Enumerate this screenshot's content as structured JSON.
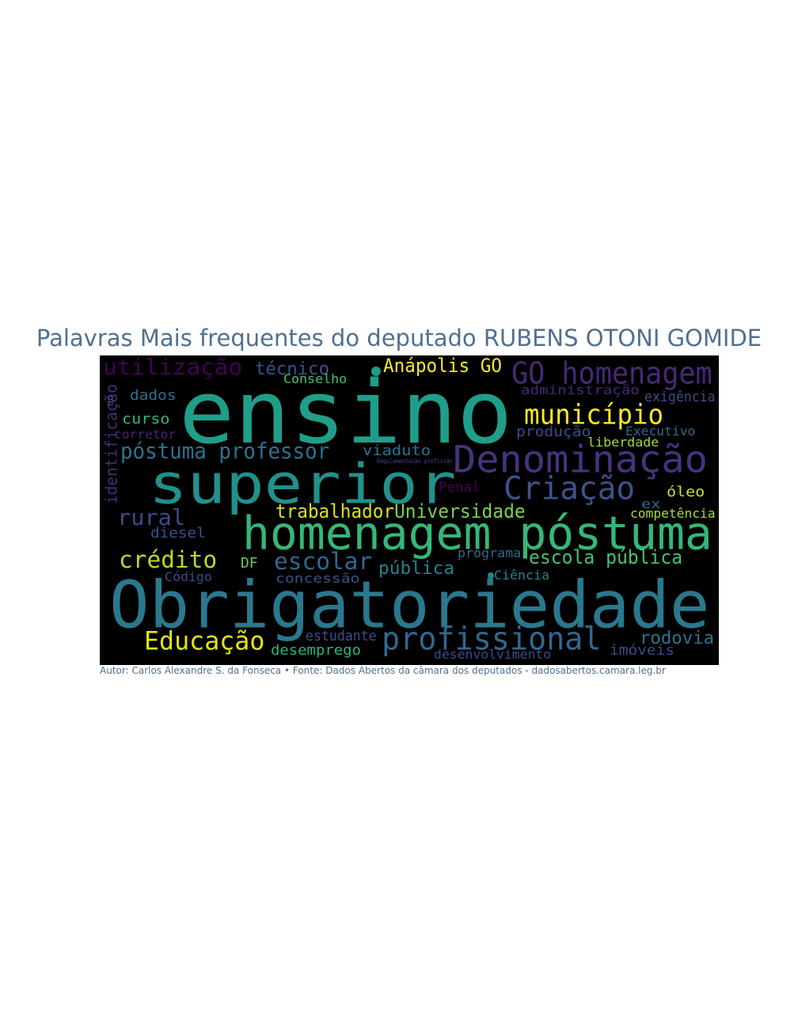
{
  "title": "Palavras Mais frequentes do deputado RUBENS OTONI GOMIDE",
  "caption": "Autor: Carlos Alexandre S. da Fonseca • Fonte: Dados Abertos da câmara dos deputados - dadosabertos.camara.leg.br",
  "colors": {
    "title": "#51708f",
    "background": "#000000"
  },
  "words": [
    {
      "text": "ensino",
      "color": "#1f9e89"
    },
    {
      "text": "superior",
      "color": "#21918c"
    },
    {
      "text": "Obrigatoriedade",
      "color": "#2a788e"
    },
    {
      "text": "homenagem póstuma",
      "color": "#35b779"
    },
    {
      "text": "Denominação",
      "color": "#46327e"
    },
    {
      "text": "GO homenagem",
      "color": "#482878"
    },
    {
      "text": "Criação",
      "color": "#3b528b"
    },
    {
      "text": "profissional",
      "color": "#31688e"
    },
    {
      "text": "município",
      "color": "#fde725"
    },
    {
      "text": "utilização",
      "color": "#440154"
    },
    {
      "text": "póstuma professor",
      "color": "#2c728e"
    },
    {
      "text": "Educação",
      "color": "#e5e419"
    },
    {
      "text": "crédito",
      "color": "#b5de2b"
    },
    {
      "text": "rural",
      "color": "#3e4a89"
    },
    {
      "text": "escolar",
      "color": "#31688e"
    },
    {
      "text": "trabalhador",
      "color": "#d8e219"
    },
    {
      "text": "Universidade",
      "color": "#7ad151"
    },
    {
      "text": "escola pública",
      "color": "#4ac16d"
    },
    {
      "text": "Anápolis GO",
      "color": "#fde725"
    },
    {
      "text": "técnico",
      "color": "#3b528b"
    },
    {
      "text": "pública",
      "color": "#26828e"
    },
    {
      "text": "rodovia",
      "color": "#2c728e"
    },
    {
      "text": "estudante",
      "color": "#3e4a89"
    },
    {
      "text": "desemprego",
      "color": "#2db27d"
    },
    {
      "text": "desenvolvimento",
      "color": "#3e4a89"
    },
    {
      "text": "imóveis",
      "color": "#3e4a89"
    },
    {
      "text": "dados",
      "color": "#2c728e"
    },
    {
      "text": "curso",
      "color": "#35b779"
    },
    {
      "text": "corretor",
      "color": "#482475"
    },
    {
      "text": "identificação",
      "color": "#472d7b"
    },
    {
      "text": "Conselho",
      "color": "#4ac16d"
    },
    {
      "text": "administração",
      "color": "#482878"
    },
    {
      "text": "exigência",
      "color": "#3e4a89"
    },
    {
      "text": "produção",
      "color": "#3e4a89"
    },
    {
      "text": "Executivo",
      "color": "#31688e"
    },
    {
      "text": "liberdade",
      "color": "#a0da39"
    },
    {
      "text": "viaduto",
      "color": "#2c728e"
    },
    {
      "text": "Regulamentação profissão",
      "color": "#414487"
    },
    {
      "text": "Penal",
      "color": "#440154"
    },
    {
      "text": "óleo",
      "color": "#d2e21b"
    },
    {
      "text": "ex",
      "color": "#31688e"
    },
    {
      "text": "competência",
      "color": "#a8db34"
    },
    {
      "text": "diesel",
      "color": "#3b528b"
    },
    {
      "text": "DF",
      "color": "#6ccd5a"
    },
    {
      "text": "programa",
      "color": "#31688e"
    },
    {
      "text": "Código",
      "color": "#3e4a89"
    },
    {
      "text": "concessão",
      "color": "#3b528b"
    },
    {
      "text": "Ciência",
      "color": "#26828e"
    },
    {
      "text": "ao",
      "color": "#3b528b"
    }
  ]
}
